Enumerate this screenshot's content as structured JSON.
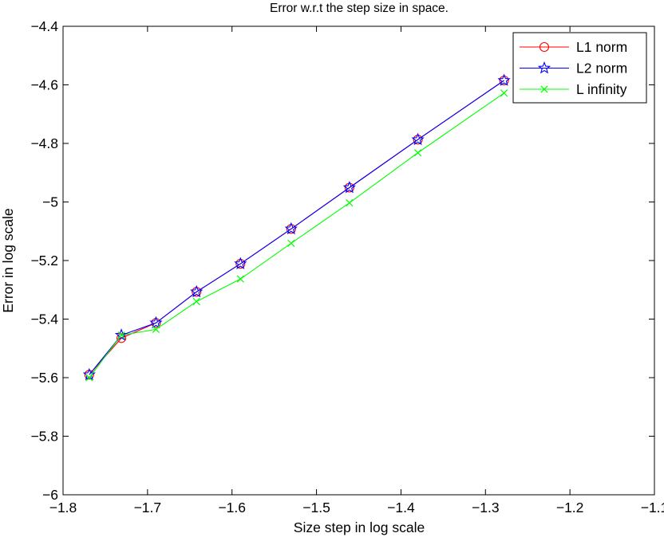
{
  "chart_data": {
    "type": "line",
    "title": "Error w.r.t the step size in space.",
    "xlabel": "Size step in log scale",
    "ylabel": "Error in log scale",
    "xlim": [
      -1.8,
      -1.1
    ],
    "ylim": [
      -6,
      -4.4
    ],
    "xticks": [
      -1.8,
      -1.7,
      -1.6,
      -1.5,
      -1.4,
      -1.3,
      -1.2,
      -1.1
    ],
    "yticks": [
      -6,
      -5.8,
      -5.6,
      -5.4,
      -5.2,
      -5,
      -4.8,
      -4.6,
      -4.4
    ],
    "xtick_labels": [
      "−1.8",
      "−1.7",
      "−1.6",
      "−1.5",
      "−1.4",
      "−1.3",
      "−1.2",
      "−1.1"
    ],
    "ytick_labels": [
      "−6",
      "−5.8",
      "−5.6",
      "−5.4",
      "−5.2",
      "−5",
      "−4.8",
      "−4.6",
      "−4.4"
    ],
    "grid": false,
    "legend_position": "top-right",
    "x": [
      -1.769,
      -1.731,
      -1.69,
      -1.642,
      -1.59,
      -1.53,
      -1.461,
      -1.38,
      -1.278
    ],
    "series": [
      {
        "name": "L1 norm",
        "color": "#ff0000",
        "marker": "circle",
        "values": [
          -5.59,
          -5.465,
          -5.413,
          -5.307,
          -5.211,
          -5.092,
          -4.951,
          -4.787,
          -4.585
        ]
      },
      {
        "name": "L2 norm",
        "color": "#0000ff",
        "marker": "star",
        "values": [
          -5.59,
          -5.455,
          -5.413,
          -5.307,
          -5.211,
          -5.092,
          -4.951,
          -4.787,
          -4.585
        ]
      },
      {
        "name": "L infinity",
        "color": "#00ff00",
        "marker": "x",
        "values": [
          -5.6,
          -5.455,
          -5.435,
          -5.34,
          -5.263,
          -5.141,
          -5.003,
          -4.832,
          -4.628
        ]
      }
    ]
  }
}
